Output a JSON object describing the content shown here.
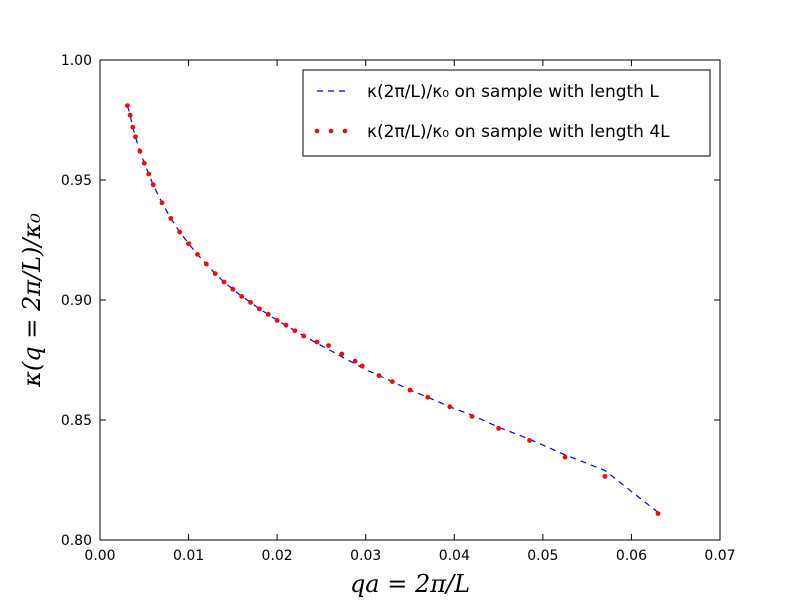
{
  "chart_data": {
    "type": "line",
    "xlabel": "qa = 2π/L",
    "ylabel": "κ(q = 2π/L)/κ₀",
    "xlim": [
      0.0,
      0.07
    ],
    "ylim": [
      0.8,
      1.0
    ],
    "x_ticks": [
      "0.00",
      "0.01",
      "0.02",
      "0.03",
      "0.04",
      "0.05",
      "0.06",
      "0.07"
    ],
    "y_ticks": [
      "0.80",
      "0.85",
      "0.90",
      "0.95",
      "1.00"
    ],
    "x_tick_values": [
      0.0,
      0.01,
      0.02,
      0.03,
      0.04,
      0.05,
      0.06,
      0.07
    ],
    "y_tick_values": [
      0.8,
      0.85,
      0.9,
      0.95,
      1.0
    ],
    "grid": false,
    "legend": "top-right",
    "colors": {
      "line": "#0000ff",
      "dots": "#ff0000"
    },
    "series": [
      {
        "name": "κ(2π/L)/κ₀ on sample with length L",
        "style": "dashed",
        "x": [
          0.0031,
          0.0034,
          0.0037,
          0.004,
          0.0045,
          0.005,
          0.0055,
          0.006,
          0.007,
          0.008,
          0.009,
          0.01,
          0.011,
          0.012,
          0.013,
          0.014,
          0.015,
          0.016,
          0.017,
          0.018,
          0.019,
          0.02,
          0.021,
          0.022,
          0.023,
          0.024,
          0.025,
          0.026,
          0.027,
          0.028,
          0.029,
          0.03,
          0.0315,
          0.033,
          0.035,
          0.037,
          0.0395,
          0.042,
          0.045,
          0.0485,
          0.0525,
          0.057,
          0.063
        ],
        "y": [
          0.981,
          0.977,
          0.972,
          0.968,
          0.962,
          0.957,
          0.9525,
          0.948,
          0.9405,
          0.934,
          0.9283,
          0.9235,
          0.919,
          0.915,
          0.911,
          0.9075,
          0.9045,
          0.9015,
          0.899,
          0.8963,
          0.894,
          0.8915,
          0.8895,
          0.8872,
          0.885,
          0.883,
          0.881,
          0.879,
          0.877,
          0.875,
          0.873,
          0.871,
          0.8685,
          0.866,
          0.8625,
          0.8595,
          0.8555,
          0.852,
          0.847,
          0.842,
          0.8355,
          0.829,
          0.8115
        ]
      },
      {
        "name": "κ(2π/L)/κ₀ on sample with length 4L",
        "style": "dots",
        "x": [
          0.0031,
          0.0034,
          0.0037,
          0.004,
          0.0045,
          0.005,
          0.0055,
          0.006,
          0.007,
          0.008,
          0.009,
          0.01,
          0.011,
          0.012,
          0.013,
          0.014,
          0.015,
          0.016,
          0.017,
          0.018,
          0.019,
          0.02,
          0.021,
          0.022,
          0.023,
          0.0245,
          0.0258,
          0.0273,
          0.0288,
          0.0296,
          0.0315,
          0.033,
          0.035,
          0.037,
          0.0395,
          0.042,
          0.045,
          0.0485,
          0.0525,
          0.057,
          0.063
        ],
        "y": [
          0.981,
          0.977,
          0.972,
          0.968,
          0.962,
          0.957,
          0.9525,
          0.948,
          0.9405,
          0.934,
          0.9283,
          0.9235,
          0.919,
          0.915,
          0.911,
          0.9075,
          0.9045,
          0.9015,
          0.899,
          0.8963,
          0.894,
          0.8915,
          0.8895,
          0.8872,
          0.885,
          0.8825,
          0.881,
          0.8775,
          0.8745,
          0.8725,
          0.8685,
          0.866,
          0.8625,
          0.8595,
          0.8555,
          0.8515,
          0.8465,
          0.8415,
          0.8345,
          0.8265,
          0.811
        ]
      }
    ]
  }
}
